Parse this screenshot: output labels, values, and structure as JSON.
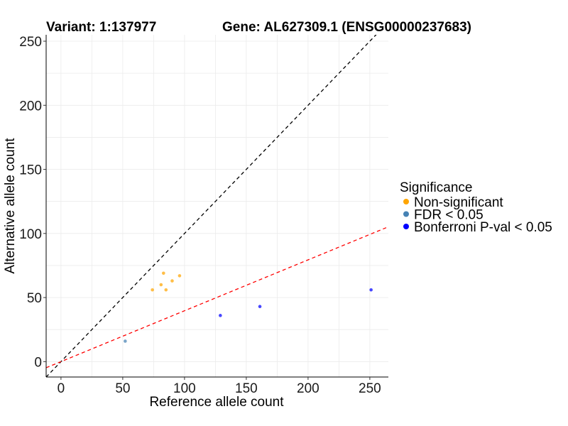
{
  "chart_data": {
    "type": "scatter",
    "title_left": "Variant: 1:137977",
    "title_right": "Gene: AL627309.1 (ENSG00000237683)",
    "xlabel": "Reference allele count",
    "ylabel": "Alternative allele count",
    "xlim": [
      -12,
      265
    ],
    "ylim": [
      -12,
      255
    ],
    "x_ticks": [
      0,
      50,
      100,
      150,
      200,
      250
    ],
    "y_ticks": [
      0,
      50,
      100,
      150,
      200,
      250
    ],
    "grid": true,
    "reference_lines": [
      {
        "slope": 1,
        "intercept": 0,
        "color": "#000000",
        "style": "dashed"
      },
      {
        "slope": 0.397,
        "intercept": 0,
        "color": "#ff0000",
        "style": "dashed"
      }
    ],
    "legend": {
      "title": "Significance",
      "position": "right",
      "entries": [
        {
          "label": "Non-significant",
          "color": "#ffa500"
        },
        {
          "label": "FDR < 0.05",
          "color": "#4682b4"
        },
        {
          "label": "Bonferroni P-val < 0.05",
          "color": "#0000ff"
        }
      ]
    },
    "series": [
      {
        "name": "Non-significant",
        "color": "#ffa500",
        "points": [
          [
            74,
            56
          ],
          [
            81,
            60
          ],
          [
            83,
            69
          ],
          [
            85,
            56
          ],
          [
            90,
            63
          ],
          [
            96,
            67
          ]
        ]
      },
      {
        "name": "FDR < 0.05",
        "color": "#4682b4",
        "points": [
          [
            52,
            16
          ]
        ]
      },
      {
        "name": "Bonferroni P-val < 0.05",
        "color": "#0000ff",
        "points": [
          [
            129,
            36
          ],
          [
            161,
            43
          ],
          [
            251,
            56
          ]
        ]
      }
    ]
  }
}
